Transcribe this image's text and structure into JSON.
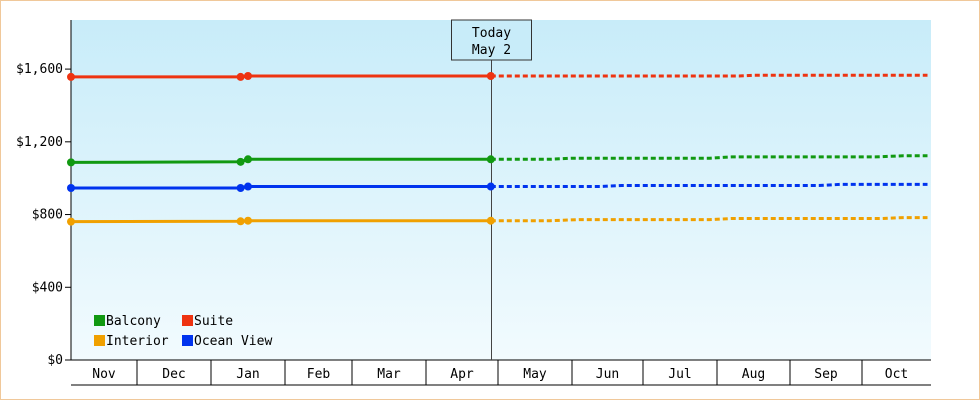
{
  "chart_data": {
    "type": "line",
    "months": [
      "Nov",
      "Dec",
      "Jan",
      "Feb",
      "Mar",
      "Apr",
      "May",
      "Jun",
      "Jul",
      "Aug",
      "Sep",
      "Oct"
    ],
    "y_ticks": [
      {
        "value": 0,
        "label": "$0"
      },
      {
        "value": 400,
        "label": "$400"
      },
      {
        "value": 800,
        "label": "$800"
      },
      {
        "value": 1200,
        "label": "$1,200"
      },
      {
        "value": 1600,
        "label": "$1,600"
      }
    ],
    "ylim": [
      0,
      1870
    ],
    "today": {
      "line1": "Today",
      "line2": "May 2",
      "month_position": 5.9
    },
    "grid": false,
    "legend_position": "bottom-left",
    "series": [
      {
        "name": "Balcony",
        "color": "#119911",
        "points": [
          [
            0,
            1087
          ],
          [
            2.4,
            1090
          ],
          [
            2.5,
            1104
          ],
          [
            5.9,
            1104
          ]
        ],
        "forecast": [
          [
            5.9,
            1104
          ],
          [
            6.7,
            1104
          ],
          [
            7.0,
            1110
          ],
          [
            8.9,
            1110
          ],
          [
            9.2,
            1117
          ],
          [
            11.2,
            1117
          ],
          [
            11.6,
            1123
          ],
          [
            11.95,
            1123
          ]
        ]
      },
      {
        "name": "Suite",
        "color": "#ee3311",
        "points": [
          [
            0,
            1557
          ],
          [
            2.4,
            1557
          ],
          [
            2.5,
            1562
          ],
          [
            5.9,
            1562
          ]
        ],
        "forecast": [
          [
            5.9,
            1562
          ],
          [
            9.3,
            1562
          ],
          [
            9.5,
            1566
          ],
          [
            11.95,
            1566
          ]
        ]
      },
      {
        "name": "Interior",
        "color": "#f0a000",
        "points": [
          [
            0,
            761
          ],
          [
            2.4,
            763
          ],
          [
            2.5,
            766
          ],
          [
            5.9,
            766
          ]
        ],
        "forecast": [
          [
            5.9,
            766
          ],
          [
            6.7,
            766
          ],
          [
            7.1,
            772
          ],
          [
            8.9,
            772
          ],
          [
            9.2,
            778
          ],
          [
            11.3,
            778
          ],
          [
            11.6,
            783
          ],
          [
            11.95,
            783
          ]
        ]
      },
      {
        "name": "Ocean View",
        "color": "#0033ee",
        "points": [
          [
            0,
            946
          ],
          [
            2.4,
            946
          ],
          [
            2.5,
            954
          ],
          [
            5.9,
            954
          ]
        ],
        "forecast": [
          [
            5.9,
            954
          ],
          [
            7.4,
            954
          ],
          [
            7.7,
            960
          ],
          [
            10.4,
            960
          ],
          [
            10.7,
            966
          ],
          [
            11.95,
            966
          ]
        ]
      }
    ],
    "legend": [
      {
        "label": "Balcony",
        "color": "#119911"
      },
      {
        "label": "Suite",
        "color": "#ee3311"
      },
      {
        "label": "Interior",
        "color": "#f0a000"
      },
      {
        "label": "Ocean View",
        "color": "#0033ee"
      }
    ]
  }
}
